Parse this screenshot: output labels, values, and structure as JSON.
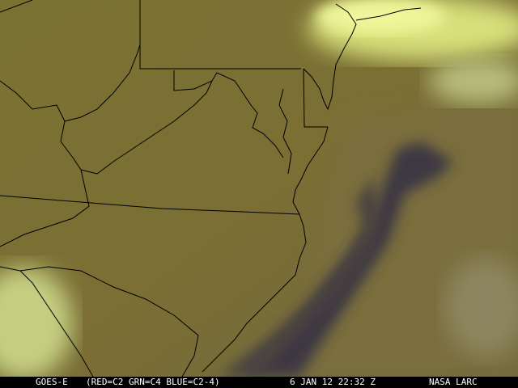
{
  "caption": {
    "satellite": "GOES-E",
    "channels": "(RED=C2 GRN=C4 BLUE=C2-4)",
    "datetime": "6 JAN 12 22:32 Z",
    "source": "NASA LARC"
  },
  "colors": {
    "land": "#7d7431",
    "cloud": "#e8f08a",
    "plume": "#3b3440",
    "boundary": "#000000"
  }
}
